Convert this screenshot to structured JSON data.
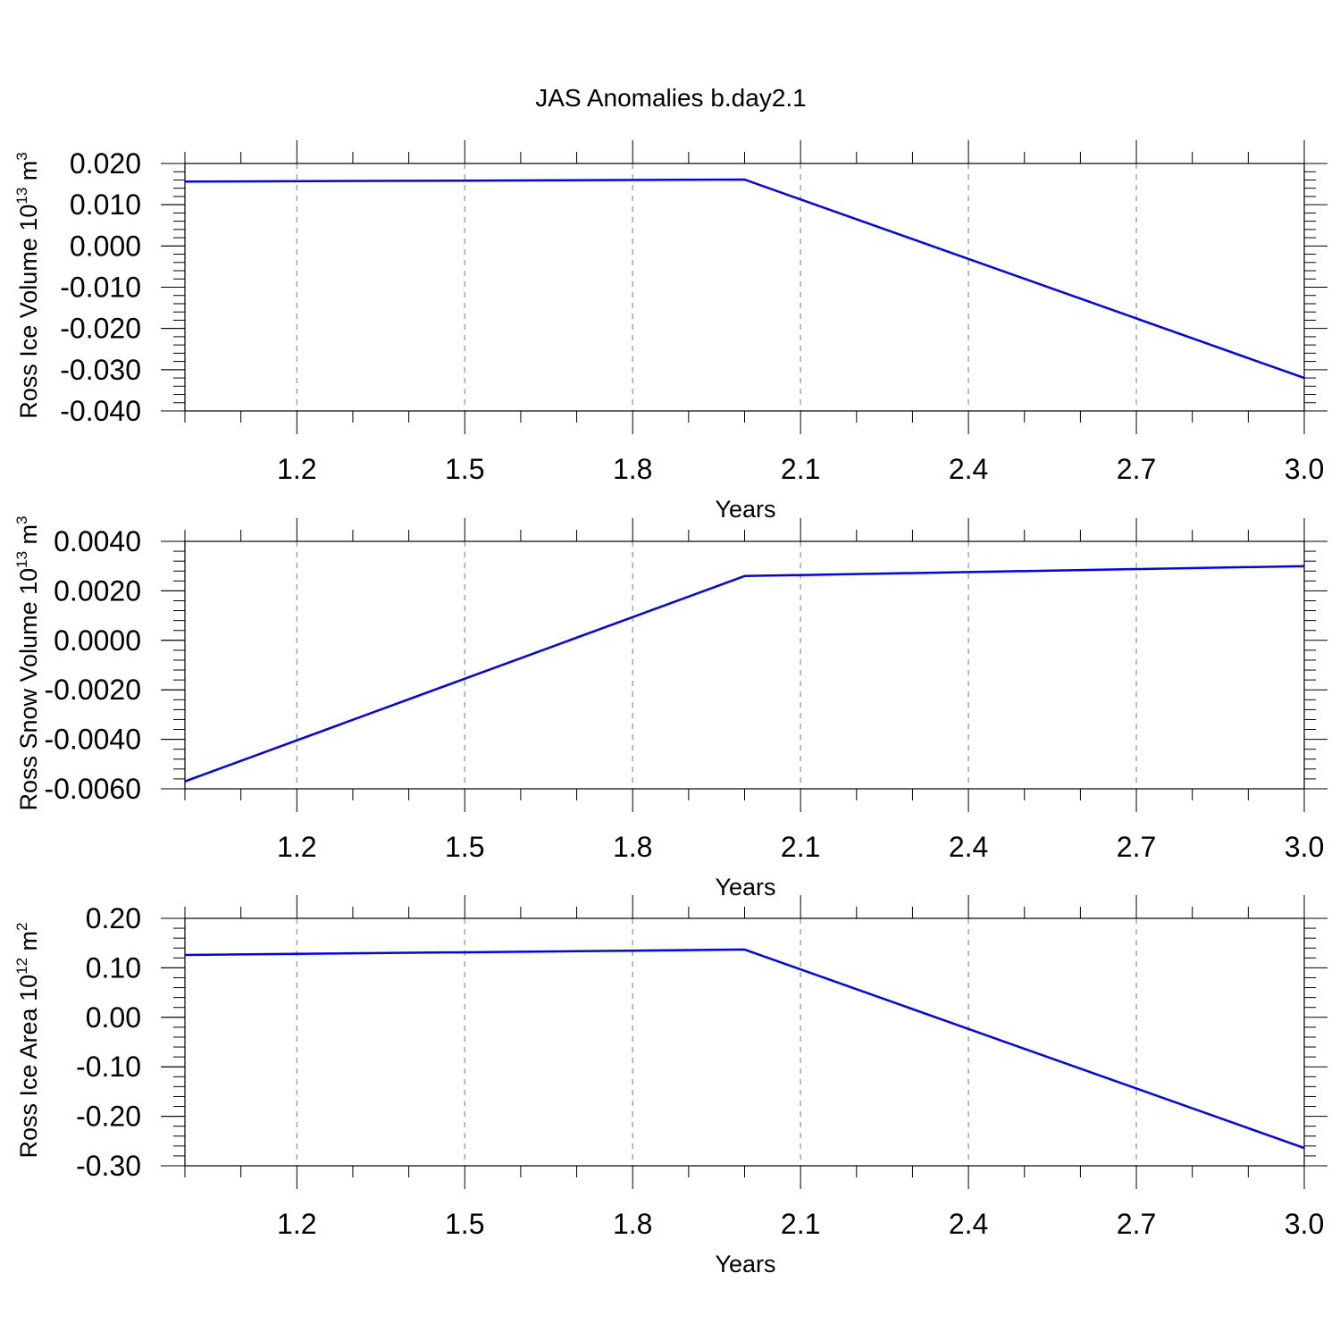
{
  "title": "JAS Anomalies b.day2.1",
  "chart_data": [
    {
      "type": "line",
      "ylabel": {
        "text": "Ross Ice Volume 10",
        "exponent": "13",
        "unit": "m",
        "unit_exponent": "3"
      },
      "xlabel": "Years",
      "xlim": [
        1.0,
        3.0
      ],
      "ylim": [
        -0.04,
        0.02
      ],
      "x_ticks": [
        "1.2",
        "1.5",
        "1.8",
        "2.1",
        "2.4",
        "2.7",
        "3.0"
      ],
      "y_ticks": [
        "0.020",
        "0.010",
        "0.000",
        "-0.010",
        "-0.020",
        "-0.030",
        "-0.040"
      ],
      "grid": "vertical dashed",
      "line_color": "#0000ff",
      "series": [
        {
          "x": [
            1.0,
            2.0,
            3.0
          ],
          "y": [
            0.0156,
            0.0161,
            -0.032
          ]
        }
      ]
    },
    {
      "type": "line",
      "ylabel": {
        "text": "Ross Snow Volume 10",
        "exponent": "13",
        "unit": "m",
        "unit_exponent": "3"
      },
      "xlabel": "Years",
      "xlim": [
        1.0,
        3.0
      ],
      "ylim": [
        -0.006,
        0.004
      ],
      "x_ticks": [
        "1.2",
        "1.5",
        "1.8",
        "2.1",
        "2.4",
        "2.7",
        "3.0"
      ],
      "y_ticks": [
        "0.0040",
        "0.0020",
        "0.0000",
        "-0.0020",
        "-0.0040",
        "-0.0060"
      ],
      "grid": "vertical dashed",
      "line_color": "#0000ff",
      "series": [
        {
          "x": [
            1.0,
            2.0,
            3.0
          ],
          "y": [
            -0.0057,
            0.0026,
            0.003
          ]
        }
      ]
    },
    {
      "type": "line",
      "ylabel": {
        "text": "Ross Ice Area 10",
        "exponent": "12",
        "unit": "m",
        "unit_exponent": "2"
      },
      "xlabel": "Years",
      "xlim": [
        1.0,
        3.0
      ],
      "ylim": [
        -0.3,
        0.2
      ],
      "x_ticks": [
        "1.2",
        "1.5",
        "1.8",
        "2.1",
        "2.4",
        "2.7",
        "3.0"
      ],
      "y_ticks": [
        "0.20",
        "0.10",
        "0.00",
        "-0.10",
        "-0.20",
        "-0.30"
      ],
      "grid": "vertical dashed",
      "line_color": "#0000ff",
      "series": [
        {
          "x": [
            1.0,
            2.0,
            3.0
          ],
          "y": [
            0.126,
            0.137,
            -0.264
          ]
        }
      ]
    }
  ]
}
